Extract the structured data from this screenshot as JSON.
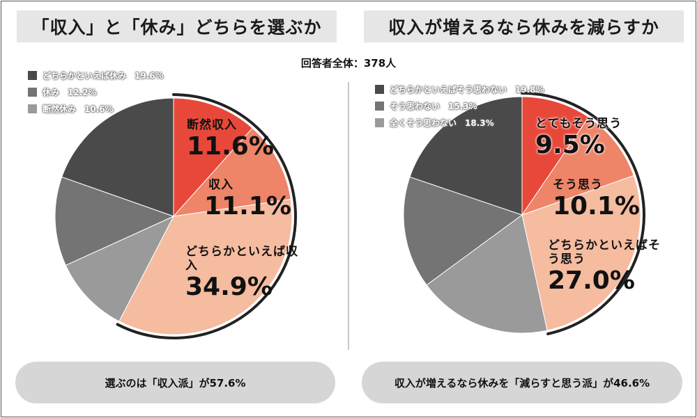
{
  "total_label": "回答者全体：378人",
  "colors": {
    "red": "#e8483a",
    "coral": "#ee8468",
    "peach": "#f5bca0",
    "dark": "#4a4a4a",
    "mid": "#747474",
    "light": "#9a9a9a",
    "accent_line": "#222222"
  },
  "chart_data": [
    {
      "type": "pie",
      "title": "「収入」と「休み」どちらを選ぶか",
      "labels": [
        "断然収入",
        "収入",
        "どちらかといえば収入",
        "断然休み",
        "休み",
        "どちらかといえば休み"
      ],
      "values": [
        11.6,
        11.1,
        34.9,
        10.6,
        12.2,
        19.6
      ],
      "unit": "%",
      "legend": [
        "どちらかといえば休み　19.6%",
        "休み　12.2%",
        "断然休み　10.6%"
      ],
      "slice_labels": [
        {
          "name": "断然収入",
          "value": "11.6%"
        },
        {
          "name": "収入",
          "value": "11.1%"
        },
        {
          "name": "どちらかといえば収入",
          "value": "34.9%"
        }
      ],
      "summary": "選ぶのは「収入派」が57.6%"
    },
    {
      "type": "pie",
      "title": "収入が増えるなら休みを減らすか",
      "labels": [
        "とてもそう思う",
        "そう思う",
        "どちらかといえばそう思う",
        "全くそう思わない",
        "そう思わない",
        "どちらかといえばそう思わない"
      ],
      "values": [
        9.5,
        10.1,
        27.0,
        18.3,
        15.3,
        19.8
      ],
      "unit": "%",
      "legend": [
        "どちらかといえばそう思わない　19.8%",
        "そう思わない　15.3%",
        "全くそう思わない　18.3%"
      ],
      "slice_labels": [
        {
          "name": "とてもそう思う",
          "value": "9.5%"
        },
        {
          "name": "そう思う",
          "value": "10.1%"
        },
        {
          "name": "どちらかといえばそう思う",
          "value": "27.0%"
        }
      ],
      "summary": "収入が増えるなら休みを「減らすと思う派」が46.6%"
    }
  ]
}
